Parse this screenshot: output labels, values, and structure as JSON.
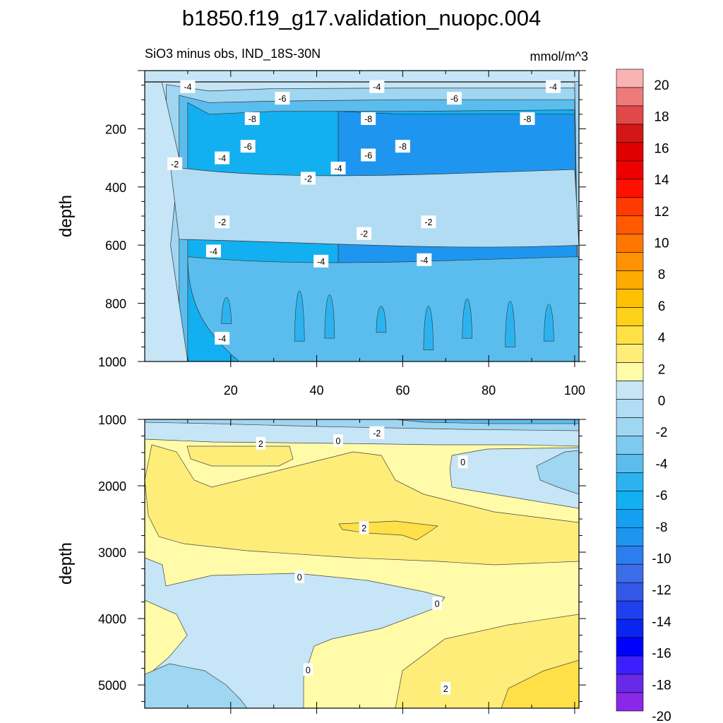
{
  "chart_data": {
    "type": "contour",
    "title": "b1850.f19_g17.validation_nuopc.004",
    "subtitle_left": "SiO3 minus obs, IND_18S-30N",
    "subtitle_right": "mmol/m^3",
    "x_ticks": [
      "20",
      "40",
      "60",
      "80",
      "100"
    ],
    "xlim": [
      0,
      101
    ],
    "panels": [
      {
        "name": "upper",
        "ylabel": "depth",
        "ylim": [
          0,
          1000
        ],
        "y_ticks": [
          "200",
          "400",
          "600",
          "800",
          "1000"
        ],
        "bands": [
          {
            "level": -2,
            "color": "#c6e5f6",
            "y": [
              [
                0,
                40
              ],
              [
                5,
                40
              ],
              [
                15,
                40
              ],
              [
                30,
                40
              ],
              [
                60,
                40
              ],
              [
                100,
                40
              ]
            ]
          },
          {
            "level": -4,
            "color": "#9fd6f1",
            "y": [
              [
                5,
                48
              ],
              [
                15,
                70
              ],
              [
                30,
                62
              ],
              [
                60,
                60
              ],
              [
                100,
                60
              ]
            ]
          },
          {
            "level": -6,
            "color": "#5bbdee",
            "y": [
              [
                8,
                85
              ],
              [
                15,
                110
              ],
              [
                30,
                105
              ],
              [
                60,
                100
              ],
              [
                100,
                100
              ]
            ]
          },
          {
            "level": -8,
            "color": "#12b0f0",
            "y": [
              [
                10,
                110
              ],
              [
                15,
                150
              ],
              [
                30,
                140
              ],
              [
                60,
                140
              ],
              [
                100,
                135
              ]
            ]
          },
          {
            "level": -10,
            "color": "#1e96f0",
            "y": [
              [
                45,
                140
              ],
              [
                60,
                150
              ],
              [
                100,
                150
              ]
            ]
          }
        ],
        "contour_labels": [
          {
            "text": "-4",
            "x": 10,
            "y": 55
          },
          {
            "text": "-6",
            "x": 32,
            "y": 95
          },
          {
            "text": "-4",
            "x": 54,
            "y": 55
          },
          {
            "text": "-6",
            "x": 72,
            "y": 95
          },
          {
            "text": "-4",
            "x": 95,
            "y": 55
          },
          {
            "text": "-8",
            "x": 25,
            "y": 165
          },
          {
            "text": "-8",
            "x": 52,
            "y": 165
          },
          {
            "text": "-8",
            "x": 89,
            "y": 165
          },
          {
            "text": "-6",
            "x": 24,
            "y": 260
          },
          {
            "text": "-4",
            "x": 18,
            "y": 300
          },
          {
            "text": "-8",
            "x": 60,
            "y": 260
          },
          {
            "text": "-6",
            "x": 52,
            "y": 290
          },
          {
            "text": "-4",
            "x": 45,
            "y": 335
          },
          {
            "text": "-2",
            "x": 7,
            "y": 320
          },
          {
            "text": "-2",
            "x": 38,
            "y": 370
          },
          {
            "text": "-2",
            "x": 18,
            "y": 520
          },
          {
            "text": "-2",
            "x": 66,
            "y": 520
          },
          {
            "text": "-2",
            "x": 51,
            "y": 560
          },
          {
            "text": "-4",
            "x": 16,
            "y": 620
          },
          {
            "text": "-4",
            "x": 41,
            "y": 655
          },
          {
            "text": "-4",
            "x": 65,
            "y": 650
          },
          {
            "text": "-4",
            "x": 18,
            "y": 920
          }
        ]
      },
      {
        "name": "lower",
        "ylabel": "depth",
        "ylim": [
          1000,
          5350
        ],
        "y_ticks": [
          "1000",
          "2000",
          "3000",
          "4000",
          "5000"
        ],
        "contour_labels": [
          {
            "text": "2",
            "x": 27,
            "y": 1360
          },
          {
            "text": "0",
            "x": 45,
            "y": 1320
          },
          {
            "text": "-2",
            "x": 54,
            "y": 1200
          },
          {
            "text": "0",
            "x": 74,
            "y": 1640
          },
          {
            "text": "2",
            "x": 51,
            "y": 2630
          },
          {
            "text": "0",
            "x": 36,
            "y": 3370
          },
          {
            "text": "0",
            "x": 68,
            "y": 3770
          },
          {
            "text": "0",
            "x": 38,
            "y": 4770
          },
          {
            "text": "2",
            "x": 70,
            "y": 5050
          }
        ]
      }
    ],
    "colorbar": {
      "labels": [
        "20",
        "18",
        "16",
        "14",
        "12",
        "10",
        "8",
        "6",
        "4",
        "2",
        "0",
        "-2",
        "-4",
        "-6",
        "-8",
        "-10",
        "-12",
        "-14",
        "-16",
        "-18",
        "-20"
      ],
      "colors": [
        "#f9b3b3",
        "#ef7a7a",
        "#e34848",
        "#d41515",
        "#df0000",
        "#ef0000",
        "#ff1000",
        "#ff3a00",
        "#ff5a00",
        "#ff7700",
        "#ff9200",
        "#ffaa00",
        "#ffc000",
        "#ffd21a",
        "#ffe047",
        "#ffed7a",
        "#fffba8",
        "#c6e5f6",
        "#b1dcf3",
        "#9fd6f1",
        "#7dc9ef",
        "#5bbdee",
        "#2cb3ef",
        "#12b0f0",
        "#13a0f0",
        "#1e96f0",
        "#2c7ef0",
        "#3c6de8",
        "#3358e8",
        "#1e40ee",
        "#0b24f2",
        "#0000ff",
        "#3b1fff",
        "#6828e8",
        "#8a28e8"
      ]
    }
  }
}
